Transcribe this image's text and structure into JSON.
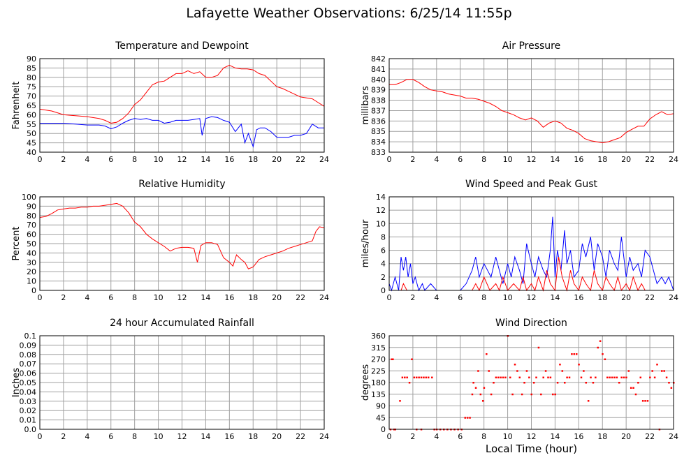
{
  "title": "Lafayette Weather Observations: 6/25/14 11:55p",
  "bottom_xlabel": "Local Time (hour)",
  "colors": {
    "red": "#ff0000",
    "blue": "#0000ff",
    "grid": "#a0a0a0",
    "frame": "#000000"
  },
  "chart_data": [
    {
      "type": "line",
      "title": "Temperature and Dewpoint",
      "ylabel": "Fahrenheit",
      "xlim": [
        0,
        24
      ],
      "ylim": [
        40,
        90
      ],
      "xticks": [
        0,
        2,
        4,
        6,
        8,
        10,
        12,
        14,
        16,
        18,
        20,
        22,
        24
      ],
      "yticks": [
        40,
        45,
        50,
        55,
        60,
        65,
        70,
        75,
        80,
        85,
        90
      ],
      "series": [
        {
          "color": "#ff0000",
          "x": [
            0,
            1,
            2,
            3,
            4,
            5,
            5.5,
            6,
            6.5,
            7,
            7.5,
            8,
            8.5,
            9,
            9.5,
            10,
            10.5,
            11,
            11.5,
            12,
            12.5,
            13,
            13.5,
            14,
            14.5,
            15,
            15.5,
            16,
            16.5,
            17,
            17.5,
            18,
            18.5,
            19,
            19.5,
            20,
            20.5,
            21,
            21.5,
            22,
            22.5,
            23,
            23.5,
            24
          ],
          "y": [
            63,
            62,
            60,
            59.5,
            59,
            58,
            57,
            55.5,
            56,
            58,
            61,
            65.5,
            68,
            72,
            76,
            77.5,
            78,
            80,
            82,
            82,
            83.5,
            82,
            83,
            80,
            80,
            81,
            85,
            86.5,
            85,
            84.5,
            84.5,
            84,
            82,
            81,
            78,
            75,
            74,
            72.5,
            71,
            69.5,
            69,
            68.5,
            66.5,
            64.5
          ]
        },
        {
          "color": "#0000ff",
          "x": [
            0,
            1,
            2,
            3,
            4,
            5,
            5.5,
            6,
            6.5,
            7,
            7.5,
            8,
            8.5,
            9,
            9.5,
            10,
            10.5,
            11,
            11.5,
            12,
            12.5,
            13,
            13.5,
            13.7,
            14,
            14.5,
            15,
            15.5,
            16,
            16.5,
            17,
            17.3,
            17.6,
            18,
            18.3,
            18.6,
            19,
            19.5,
            20,
            20.5,
            21,
            21.5,
            22,
            22.5,
            23,
            23.5,
            24
          ],
          "y": [
            55.5,
            55.5,
            55.5,
            55,
            54.5,
            54.5,
            54,
            52.5,
            53.5,
            55.5,
            57,
            58,
            57.5,
            58,
            57,
            57,
            55.5,
            56,
            57,
            57,
            57,
            57.5,
            58,
            49,
            58,
            59,
            58.5,
            57,
            56,
            51,
            55,
            45,
            50,
            43,
            52,
            53,
            53,
            51,
            48,
            48,
            48,
            49,
            49,
            50,
            55,
            53,
            53
          ]
        }
      ]
    },
    {
      "type": "line",
      "title": "Air Pressure",
      "ylabel": "millibars",
      "xlim": [
        0,
        24
      ],
      "ylim": [
        833,
        842
      ],
      "xticks": [
        0,
        2,
        4,
        6,
        8,
        10,
        12,
        14,
        16,
        18,
        20,
        22,
        24
      ],
      "yticks": [
        833,
        834,
        835,
        836,
        837,
        838,
        839,
        840,
        841,
        842
      ],
      "series": [
        {
          "color": "#ff0000",
          "x": [
            0,
            0.5,
            1,
            1.5,
            2,
            2.5,
            3,
            3.5,
            4,
            4.5,
            5,
            5.5,
            6,
            6.5,
            7,
            7.5,
            8,
            8.5,
            9,
            9.5,
            10,
            10.5,
            11,
            11.5,
            12,
            12.5,
            13,
            13.5,
            14,
            14.5,
            15,
            15.5,
            16,
            16.5,
            17,
            17.5,
            18,
            18.5,
            19,
            19.5,
            20,
            20.5,
            21,
            21.5,
            22,
            22.5,
            23,
            23.5,
            24
          ],
          "y": [
            839.5,
            839.5,
            839.7,
            840,
            840,
            839.7,
            839.3,
            839,
            838.9,
            838.8,
            838.6,
            838.5,
            838.4,
            838.2,
            838.2,
            838.1,
            837.9,
            837.7,
            837.4,
            837,
            836.8,
            836.6,
            836.3,
            836.1,
            836.3,
            836,
            835.4,
            835.8,
            836,
            835.8,
            835.3,
            835.1,
            834.8,
            834.3,
            834.1,
            834,
            833.9,
            834,
            834.2,
            834.4,
            834.9,
            835.2,
            835.5,
            835.5,
            836.2,
            836.6,
            836.9,
            836.6,
            836.7
          ]
        }
      ]
    },
    {
      "type": "line",
      "title": "Relative Humidity",
      "ylabel": "Percent",
      "xlim": [
        0,
        24
      ],
      "ylim": [
        0,
        100
      ],
      "xticks": [
        0,
        2,
        4,
        6,
        8,
        10,
        12,
        14,
        16,
        18,
        20,
        22,
        24
      ],
      "yticks": [
        0,
        10,
        20,
        30,
        40,
        50,
        60,
        70,
        80,
        90,
        100
      ],
      "series": [
        {
          "color": "#ff0000",
          "x": [
            0,
            0.5,
            1,
            1.5,
            2,
            2.5,
            3,
            3.5,
            4,
            4.5,
            5,
            5.5,
            6,
            6.5,
            7,
            7.5,
            8,
            8.5,
            9,
            9.5,
            10,
            10.5,
            11,
            11.5,
            12,
            12.5,
            13,
            13.3,
            13.6,
            14,
            14.5,
            15,
            15.5,
            16,
            16.3,
            16.6,
            17,
            17.3,
            17.6,
            18,
            18.5,
            19,
            19.5,
            20,
            20.5,
            21,
            21.5,
            22,
            22.5,
            23,
            23.3,
            23.6,
            24
          ],
          "y": [
            78,
            79,
            82,
            86,
            87,
            88,
            88,
            89,
            89,
            90,
            90,
            91,
            92,
            93,
            90,
            83,
            73,
            68,
            60,
            55,
            51,
            47,
            42,
            45,
            46,
            46,
            45,
            30,
            48,
            51,
            51,
            49,
            35,
            30,
            26,
            38,
            33,
            30,
            23,
            25,
            33,
            36,
            38,
            40,
            42,
            45,
            47,
            49,
            51,
            53,
            63,
            68,
            67
          ]
        }
      ]
    },
    {
      "type": "line",
      "title": "Wind Speed and Peak Gust",
      "ylabel": "miles/hour",
      "xlim": [
        0,
        24
      ],
      "ylim": [
        0,
        14
      ],
      "xticks": [
        0,
        2,
        4,
        6,
        8,
        10,
        12,
        14,
        16,
        18,
        20,
        22,
        24
      ],
      "yticks": [
        0,
        2,
        4,
        6,
        8,
        10,
        12,
        14
      ],
      "series": [
        {
          "color": "#0000ff",
          "x": [
            0,
            0.2,
            0.5,
            0.8,
            1,
            1.2,
            1.4,
            1.6,
            1.8,
            2,
            2.2,
            2.5,
            2.8,
            3,
            3.5,
            4,
            5,
            6,
            6.5,
            7,
            7.3,
            7.6,
            8,
            8.3,
            8.6,
            9,
            9.3,
            9.6,
            10,
            10.3,
            10.6,
            11,
            11.3,
            11.6,
            12,
            12.3,
            12.6,
            13,
            13.3,
            13.6,
            13.8,
            14,
            14.2,
            14.5,
            14.8,
            15,
            15.3,
            15.6,
            16,
            16.3,
            16.6,
            17,
            17.3,
            17.6,
            18,
            18.3,
            18.6,
            19,
            19.3,
            19.6,
            20,
            20.3,
            20.6,
            21,
            21.3,
            21.6,
            22,
            22.3,
            22.6,
            23,
            23.3,
            23.6,
            24
          ],
          "y": [
            1,
            0,
            2,
            0,
            5,
            3,
            5,
            2,
            4,
            1,
            2,
            0,
            1,
            0,
            1,
            0,
            0,
            0,
            1,
            3,
            5,
            2,
            4,
            3,
            2,
            5,
            3,
            1,
            4,
            2,
            5,
            3,
            1,
            7,
            4,
            2,
            5,
            3,
            2,
            6,
            11,
            2,
            6,
            3,
            9,
            4,
            6,
            2,
            3,
            7,
            5,
            8,
            3,
            7,
            5,
            2,
            6,
            4,
            3,
            8,
            2,
            5,
            3,
            4,
            2,
            6,
            5,
            3,
            1,
            2,
            1,
            2,
            0
          ]
        },
        {
          "color": "#ff0000",
          "x": [
            0,
            1,
            1.2,
            1.5,
            2,
            3,
            6,
            7,
            7.3,
            7.6,
            8,
            8.5,
            9,
            9.3,
            9.6,
            10,
            10.5,
            11,
            11.3,
            11.6,
            12,
            12.3,
            12.6,
            13,
            13.3,
            13.6,
            14,
            14.3,
            14.6,
            15,
            15.3,
            15.6,
            16,
            16.3,
            16.6,
            17,
            17.3,
            17.6,
            18,
            18.3,
            18.6,
            19,
            19.3,
            19.6,
            20,
            20.3,
            20.6,
            21,
            21.3,
            21.6,
            22,
            23,
            24
          ],
          "y": [
            0,
            0,
            1,
            0,
            0,
            0,
            0,
            0,
            1,
            0,
            2,
            0,
            1,
            0,
            2,
            0,
            1,
            0,
            2,
            0,
            1,
            0,
            2,
            0,
            3,
            1,
            0,
            5,
            2,
            0,
            3,
            1,
            0,
            2,
            1,
            0,
            3,
            1,
            0,
            2,
            1,
            0,
            2,
            0,
            1,
            0,
            2,
            0,
            1,
            0,
            0,
            0,
            0
          ]
        }
      ]
    },
    {
      "type": "line",
      "title": "24 hour Accumulated Rainfall",
      "ylabel": "Inches",
      "xlim": [
        0,
        24
      ],
      "ylim": [
        0,
        0.1
      ],
      "xticks": [
        0,
        2,
        4,
        6,
        8,
        10,
        12,
        14,
        16,
        18,
        20,
        22,
        24
      ],
      "yticks": [
        "0.0",
        "0.01",
        "0.02",
        "0.03",
        "0.04",
        "0.05",
        "0.06",
        "0.07",
        "0.08",
        "0.09",
        "0.1"
      ],
      "series": [
        {
          "color": "#ff0000",
          "x": [
            0,
            24
          ],
          "y": [
            0,
            0
          ]
        }
      ]
    },
    {
      "type": "scatter",
      "title": "Wind Direction",
      "ylabel": "degrees",
      "xlim": [
        0,
        24
      ],
      "ylim": [
        0,
        360
      ],
      "xticks": [
        0,
        2,
        4,
        6,
        8,
        10,
        12,
        14,
        16,
        18,
        20,
        22,
        24
      ],
      "yticks": [
        0,
        45,
        90,
        135,
        180,
        225,
        270,
        315,
        360
      ],
      "series": [
        {
          "color": "#ff0000",
          "x": [
            0.1,
            0.3,
            0.5,
            0.2,
            0.4,
            0.9,
            1.1,
            1.3,
            1.5,
            1.7,
            1.9,
            2.1,
            2.3,
            2.5,
            2.7,
            2.9,
            3.1,
            3.3,
            3.6,
            2.3,
            2.7,
            3.8,
            4.0,
            4.3,
            4.6,
            4.9,
            5.2,
            5.5,
            5.8,
            6.1,
            6.4,
            6.6,
            6.8,
            7.0,
            7.1,
            7.3,
            7.5,
            7.7,
            7.9,
            8.0,
            8.2,
            8.4,
            8.6,
            8.8,
            9.0,
            9.2,
            9.4,
            9.6,
            9.8,
            10.0,
            10.2,
            10.4,
            10.6,
            10.8,
            11.0,
            11.2,
            11.4,
            11.6,
            11.8,
            12.0,
            12.2,
            12.4,
            12.6,
            12.8,
            13.0,
            13.2,
            13.4,
            13.6,
            13.8,
            14.0,
            14.2,
            14.4,
            14.6,
            14.8,
            15.0,
            15.2,
            15.4,
            15.6,
            15.8,
            16.0,
            16.2,
            16.4,
            16.6,
            16.8,
            17.0,
            17.2,
            17.4,
            17.6,
            17.8,
            18.0,
            18.2,
            18.4,
            18.6,
            18.8,
            19.0,
            19.2,
            19.4,
            19.6,
            19.8,
            20.0,
            20.2,
            20.4,
            20.6,
            20.8,
            21.0,
            21.2,
            21.4,
            21.6,
            21.8,
            22.0,
            22.2,
            22.4,
            22.6,
            22.8,
            23.0,
            23.2,
            23.4,
            23.6,
            23.8,
            24.0
          ],
          "y": [
            0,
            270,
            0,
            270,
            0,
            110,
            200,
            200,
            200,
            180,
            270,
            200,
            200,
            200,
            200,
            200,
            200,
            200,
            200,
            0,
            0,
            0,
            0,
            0,
            0,
            0,
            0,
            0,
            0,
            0,
            45,
            45,
            45,
            135,
            180,
            160,
            225,
            135,
            110,
            160,
            290,
            225,
            135,
            180,
            200,
            200,
            200,
            200,
            200,
            360,
            200,
            135,
            250,
            225,
            200,
            135,
            180,
            225,
            200,
            135,
            180,
            200,
            315,
            135,
            200,
            225,
            200,
            200,
            135,
            135,
            180,
            250,
            225,
            180,
            200,
            200,
            290,
            290,
            290,
            250,
            200,
            225,
            180,
            110,
            200,
            180,
            200,
            315,
            340,
            290,
            270,
            200,
            200,
            200,
            200,
            200,
            180,
            200,
            200,
            200,
            225,
            160,
            160,
            135,
            180,
            200,
            110,
            110,
            110,
            200,
            225,
            200,
            250,
            0,
            225,
            225,
            200,
            180,
            160,
            180
          ]
        }
      ]
    }
  ]
}
